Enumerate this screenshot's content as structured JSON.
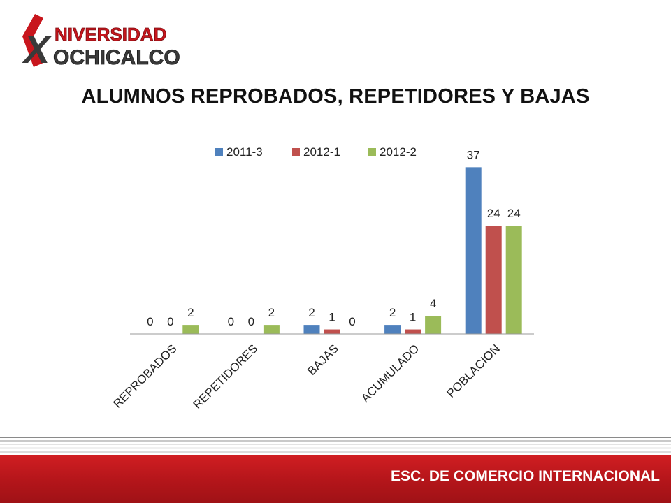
{
  "header": {
    "logo_text_line1": "NIVERSIDAD",
    "logo_text_line2": "OCHICALCO",
    "logo_letter_x": "X",
    "title": "ALUMNOS REPROBADOS, REPETIDORES Y BAJAS"
  },
  "colors": {
    "brand_red": "#c8161d",
    "logo_dark": "#3a3a3a",
    "series_2011_3": "#4f81bd",
    "series_2012_1": "#c0504d",
    "series_2012_2": "#9bbb59"
  },
  "chart_data": {
    "type": "bar",
    "title": "ALUMNOS REPROBADOS, REPETIDORES Y BAJAS",
    "categories": [
      "REPROBADOS",
      "REPETIDORES",
      "BAJAS",
      "ACUMULADO",
      "POBLACION"
    ],
    "series": [
      {
        "name": "2011-3",
        "color": "#4f81bd",
        "values": [
          0,
          0,
          2,
          2,
          37
        ]
      },
      {
        "name": "2012-1",
        "color": "#c0504d",
        "values": [
          0,
          0,
          1,
          1,
          24
        ]
      },
      {
        "name": "2012-2",
        "color": "#9bbb59",
        "values": [
          2,
          2,
          0,
          4,
          24
        ]
      }
    ],
    "ylim": [
      0,
      40
    ],
    "data_labels": true,
    "grid": false,
    "legend": "top"
  },
  "footer": {
    "text": "ESC. DE COMERCIO INTERNACIONAL"
  }
}
